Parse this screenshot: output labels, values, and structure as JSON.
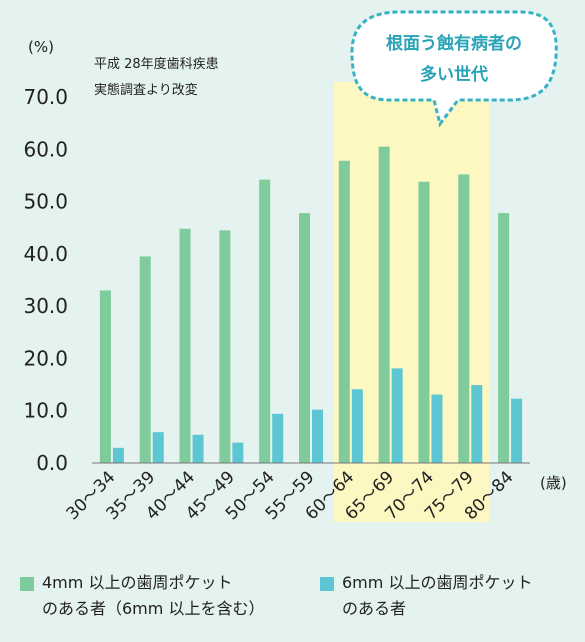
{
  "chart_data": {
    "type": "bar",
    "categories": [
      "30～34",
      "35～39",
      "40～44",
      "45～49",
      "50～54",
      "55～59",
      "60～64",
      "65～69",
      "70～74",
      "75～79",
      "80～84"
    ],
    "series": [
      {
        "name_lines": [
          "4mm 以上の歯周ポケット",
          "のある者（6mm 以上を含む）"
        ],
        "values": [
          33.0,
          39.5,
          44.8,
          44.5,
          54.2,
          47.8,
          57.8,
          60.5,
          53.8,
          55.2,
          47.8
        ],
        "color": "#7fcb9c"
      },
      {
        "name_lines": [
          "6mm 以上の歯周ポケット",
          "のある者"
        ],
        "values": [
          2.9,
          5.9,
          5.4,
          3.9,
          9.4,
          10.2,
          14.1,
          18.1,
          13.1,
          14.9,
          12.3
        ],
        "color": "#5cc6d2"
      }
    ],
    "y_ticks": [
      "0.0",
      "10.0",
      "20.0",
      "30.0",
      "40.0",
      "50.0",
      "60.0",
      "70.0"
    ],
    "ylim": [
      0,
      75
    ],
    "y_unit": "(%)",
    "x_unit": "(歳)",
    "source_lines": [
      "平成 28年度歯科疾患",
      "実態調査より改変"
    ],
    "highlight": {
      "categories": [
        "60～64",
        "65～69",
        "70～74",
        "75～79"
      ],
      "color": "#fdf7c2",
      "callout_lines": [
        "根面う蝕有病者の",
        "多い世代"
      ],
      "callout_border_color": "#35b3c4"
    },
    "grid": false,
    "legend_position": "bottom"
  }
}
